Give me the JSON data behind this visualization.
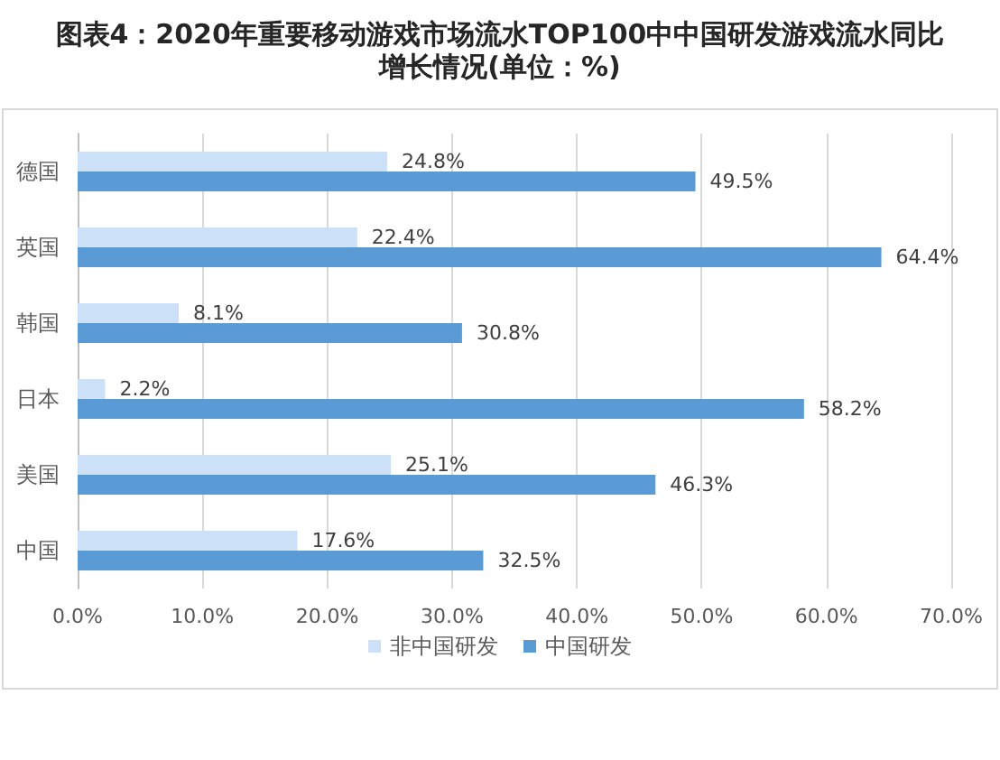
{
  "chart_data": {
    "type": "bar",
    "orientation": "horizontal",
    "title": "图表4：2020年重要移动游戏市场流水TOP100中中国研发游戏流水同比增长情况(单位：%)",
    "categories": [
      "德国",
      "英国",
      "韩国",
      "日本",
      "美国",
      "中国"
    ],
    "series": [
      {
        "name": "非中国研发",
        "color": "#cce0f8",
        "values": [
          24.8,
          22.4,
          8.1,
          2.2,
          25.1,
          17.6
        ],
        "value_labels": [
          "24.8%",
          "22.4%",
          "8.1%",
          "2.2%",
          "25.1%",
          "17.6%"
        ]
      },
      {
        "name": "中国研发",
        "color": "#5b9bd5",
        "values": [
          49.5,
          64.4,
          30.8,
          58.2,
          46.3,
          32.5
        ],
        "value_labels": [
          "49.5%",
          "64.4%",
          "30.8%",
          "58.2%",
          "46.3%",
          "32.5%"
        ]
      }
    ],
    "xlim": [
      0,
      70
    ],
    "xticks": [
      {
        "value": 0,
        "label": "0.0%"
      },
      {
        "value": 10,
        "label": "10.0%"
      },
      {
        "value": 20,
        "label": "20.0%"
      },
      {
        "value": 30,
        "label": "30.0%"
      },
      {
        "value": 40,
        "label": "40.0%"
      },
      {
        "value": 50,
        "label": "50.0%"
      },
      {
        "value": 60,
        "label": "60.0%"
      },
      {
        "value": 70,
        "label": "70.0%"
      }
    ],
    "grid": "x",
    "legend": "bottom"
  }
}
